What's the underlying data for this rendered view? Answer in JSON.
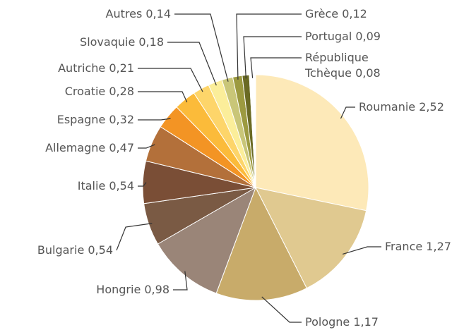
{
  "chart_data": {
    "type": "pie",
    "categories": [
      "Roumanie",
      "France",
      "Pologne",
      "Hongrie",
      "Bulgarie",
      "Italie",
      "Allemagne",
      "Espagne",
      "Croatie",
      "Autriche",
      "Slovaquie",
      "Autres",
      "Grèce",
      "Portugal",
      "République Tchèque"
    ],
    "values": [
      2.52,
      1.27,
      1.17,
      0.98,
      0.54,
      0.54,
      0.47,
      0.32,
      0.28,
      0.21,
      0.18,
      0.14,
      0.12,
      0.09,
      0.08
    ],
    "value_labels": [
      "2,52",
      "1,27",
      "1,17",
      "0,98",
      "0,54",
      "0,54",
      "0,47",
      "0,32",
      "0,28",
      "0,21",
      "0,18",
      "0,14",
      "0,12",
      "0,09",
      "0,08"
    ],
    "colors": [
      "#fde9b8",
      "#e0c990",
      "#c8ab6a",
      "#9a8578",
      "#7a5a44",
      "#7a4e36",
      "#b3703a",
      "#f39424",
      "#fbbb3a",
      "#fdd56a",
      "#fbee9a",
      "#c9c678",
      "#9c9a40",
      "#6a6a24",
      "#ffffff"
    ]
  }
}
